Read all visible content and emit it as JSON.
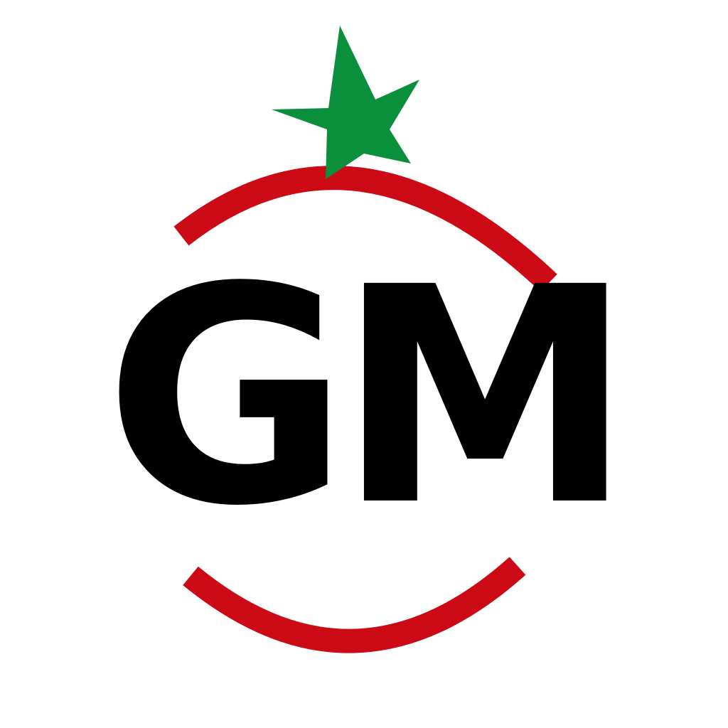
{
  "logo": {
    "text": "GM",
    "icon": "tomato-logo-icon",
    "colors": {
      "text": "#000000",
      "ring": "#cc0a16",
      "leaf": "#0a8f3c",
      "background": "#ffffff"
    }
  }
}
